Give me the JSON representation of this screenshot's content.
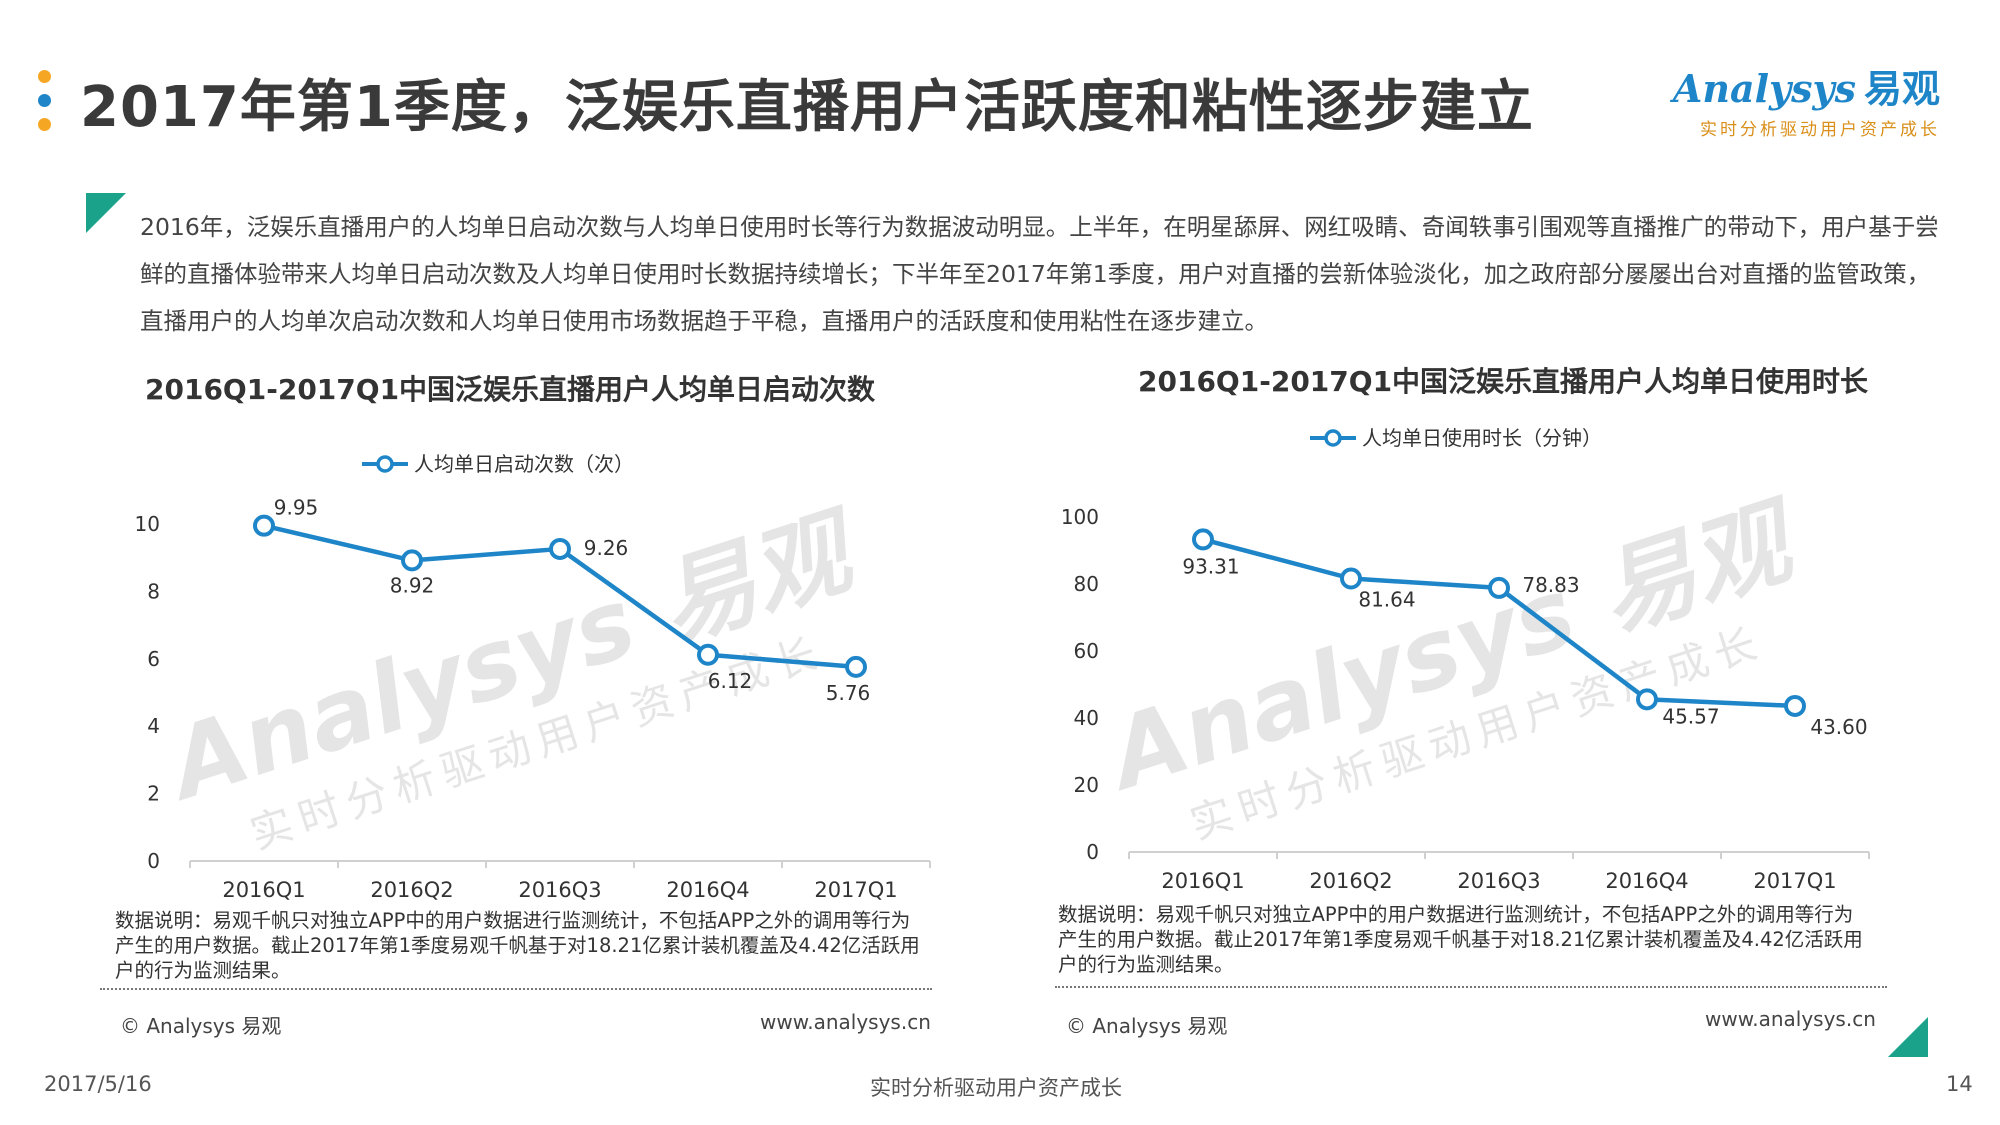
{
  "header": {
    "title": "2017年第1季度，泛娱乐直播用户活跃度和粘性逐步建立",
    "bullet_colors": [
      "#f5a623",
      "#1e86c8",
      "#f5a623"
    ]
  },
  "logo": {
    "main": "Analysys",
    "cn": "易观",
    "slogan": "实时分析驱动用户资产成长"
  },
  "summary": "2016年，泛娱乐直播用户的人均单日启动次数与人均单日使用时长等行为数据波动明显。上半年，在明星舔屏、网红吸睛、奇闻轶事引围观等直播推广的带动下，用户基于尝鲜的直播体验带来人均单日启动次数及人均单日使用时长数据持续增长；下半年至2017年第1季度，用户对直播的尝新体验淡化，加之政府部分屡屡出台对直播的监管政策，直播用户的人均单次启动次数和人均单日使用市场数据趋于平稳，直播用户的活跃度和使用粘性在逐步建立。",
  "accent_color": "#1aa38a",
  "line_color": "#1e86c8",
  "watermark": {
    "main": "Analysys 易观",
    "sub": "实时分析驱动用户资产成长"
  },
  "chart_data": [
    {
      "type": "line",
      "title": "2016Q1-2017Q1中国泛娱乐直播用户人均单日启动次数",
      "categories": [
        "2016Q1",
        "2016Q2",
        "2016Q3",
        "2016Q4",
        "2017Q1"
      ],
      "series": [
        {
          "name": "人均单日启动次数（次）",
          "values": [
            9.95,
            8.92,
            9.26,
            6.12,
            5.76
          ]
        }
      ],
      "value_labels": [
        "9.95",
        "8.92",
        "9.26",
        "6.12",
        "5.76"
      ],
      "yticks": [
        "0",
        "2",
        "4",
        "6",
        "8",
        "10"
      ],
      "ylim": [
        0,
        10
      ],
      "legend_position": "top"
    },
    {
      "type": "line",
      "title": "2016Q1-2017Q1中国泛娱乐直播用户人均单日使用时长",
      "categories": [
        "2016Q1",
        "2016Q2",
        "2016Q3",
        "2016Q4",
        "2017Q1"
      ],
      "series": [
        {
          "name": "人均单日使用时长（分钟）",
          "values": [
            93.31,
            81.64,
            78.83,
            45.57,
            43.6
          ]
        }
      ],
      "value_labels": [
        "93.31",
        "81.64",
        "78.83",
        "45.57",
        "43.60"
      ],
      "yticks": [
        "0",
        "20",
        "40",
        "60",
        "80",
        "100"
      ],
      "ylim": [
        0,
        100
      ],
      "legend_position": "top"
    }
  ],
  "notes": {
    "left": "数据说明：易观千帆只对独立APP中的用户数据进行监测统计，不包括APP之外的调用等行为产生的用户数据。截止2017年第1季度易观千帆基于对18.21亿累计装机覆盖及4.42亿活跃用户的行为监测结果。",
    "right": "数据说明：易观千帆只对独立APP中的用户数据进行监测统计，不包括APP之外的调用等行为产生的用户数据。截止2017年第1季度易观千帆基于对18.21亿累计装机覆盖及4.42亿活跃用户的行为监测结果。"
  },
  "copyright": {
    "text": "© Analysys 易观",
    "url": "www.analysys.cn"
  },
  "footer": {
    "date": "2017/5/16",
    "slogan": "实时分析驱动用户资产成长",
    "page": "14"
  }
}
